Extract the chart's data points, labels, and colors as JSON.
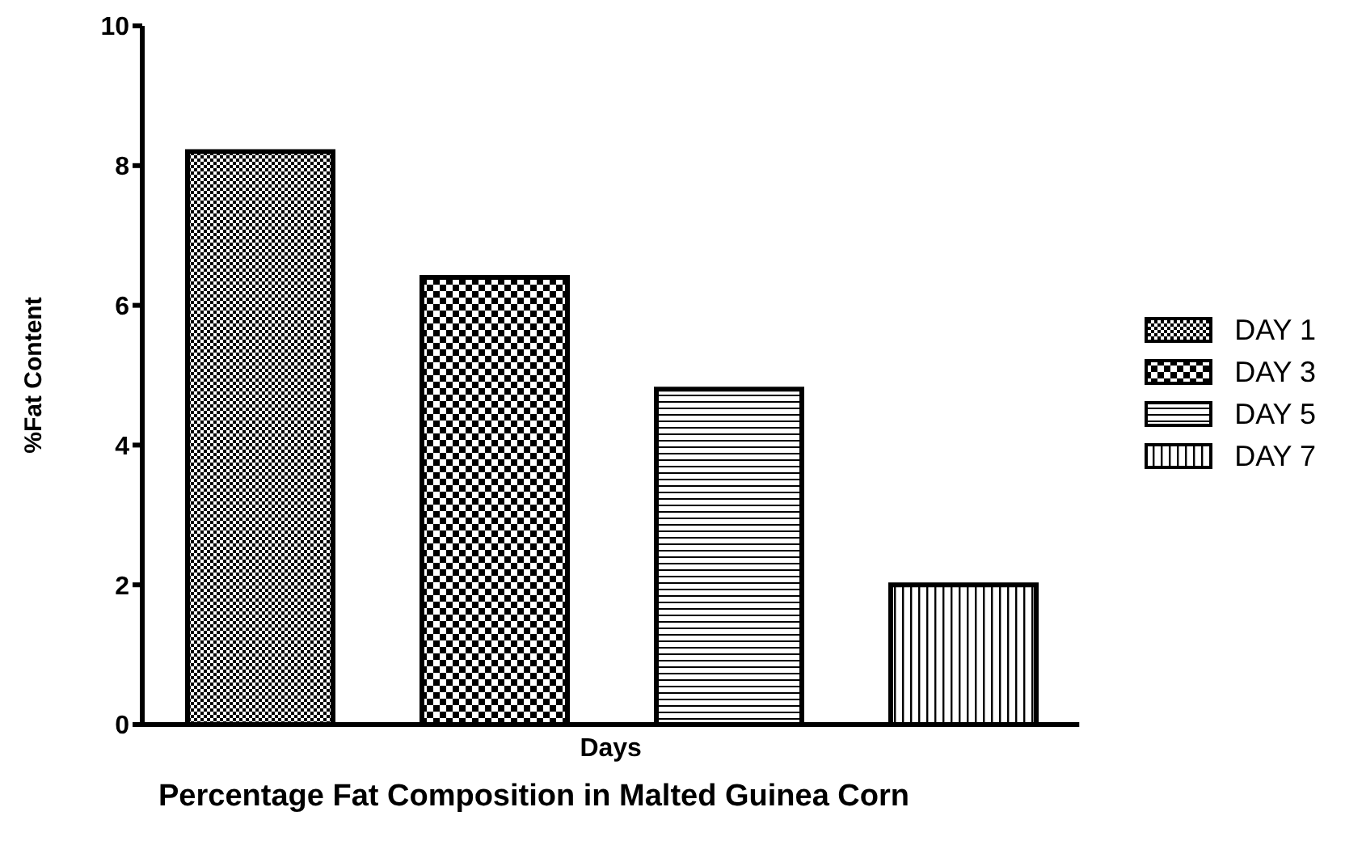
{
  "chart_data": {
    "type": "bar",
    "title": "Percentage Fat Composition in Malted Guinea Corn",
    "ylabel": "%Fat Content",
    "categories": [
      "Days"
    ],
    "series": [
      {
        "name": "DAY 1",
        "color": "#000000",
        "values": [
          8.2
        ]
      },
      {
        "name": "DAY 3",
        "color": "#000000",
        "values": [
          6.4
        ]
      },
      {
        "name": "DAY 5",
        "color": "#000000",
        "values": [
          4.8
        ]
      },
      {
        "name": "DAY 7",
        "color": "#000000",
        "values": [
          2.0
        ]
      }
    ],
    "ylim": [
      0,
      10
    ],
    "yticks": [
      0,
      2,
      4,
      6,
      8,
      10
    ],
    "grid": false,
    "legend": "right"
  }
}
